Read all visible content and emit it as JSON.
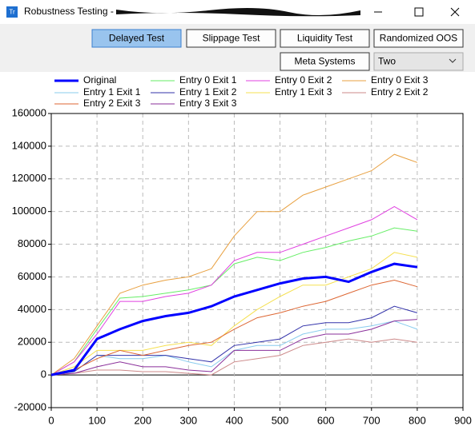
{
  "window": {
    "title": "Robustness Testing -"
  },
  "toolbar": {
    "buttons": [
      "Delayed Test",
      "Slippage Test",
      "Liquidity Test",
      "Randomized OOS",
      "Meta Systems"
    ],
    "dropdown": "Two"
  },
  "chart_data": {
    "type": "line",
    "x": [
      0,
      50,
      100,
      150,
      200,
      250,
      300,
      350,
      400,
      450,
      500,
      550,
      600,
      650,
      700,
      750,
      800
    ],
    "series": [
      {
        "name": "Original",
        "color": "#0000ff",
        "values": [
          0,
          3000,
          22000,
          28000,
          33000,
          36000,
          38000,
          42000,
          48000,
          52000,
          56000,
          59000,
          60000,
          57000,
          63000,
          68000,
          66000
        ]
      },
      {
        "name": "Entry 0 Exit 1",
        "color": "#66ee66",
        "values": [
          0,
          8000,
          28000,
          47000,
          48000,
          50000,
          52000,
          55000,
          68000,
          72000,
          70000,
          75000,
          78000,
          82000,
          85000,
          90000,
          88000
        ]
      },
      {
        "name": "Entry 0 Exit 2",
        "color": "#e040e0",
        "values": [
          0,
          8000,
          25000,
          45000,
          45000,
          48000,
          50000,
          55000,
          70000,
          75000,
          75000,
          80000,
          85000,
          90000,
          95000,
          103000,
          95000
        ]
      },
      {
        "name": "Entry 0 Exit 3",
        "color": "#e8a040",
        "values": [
          0,
          10000,
          30000,
          50000,
          55000,
          58000,
          60000,
          65000,
          85000,
          100000,
          100000,
          110000,
          115000,
          120000,
          125000,
          135000,
          130000
        ]
      },
      {
        "name": "Entry 1 Exit 1",
        "color": "#88ccee",
        "values": [
          0,
          2000,
          12000,
          10000,
          10000,
          12000,
          8000,
          5000,
          15000,
          18000,
          18000,
          25000,
          28000,
          28000,
          30000,
          33000,
          28000
        ]
      },
      {
        "name": "Entry 1 Exit 2",
        "color": "#3333aa",
        "values": [
          0,
          2000,
          12000,
          12000,
          12000,
          12000,
          10000,
          8000,
          18000,
          20000,
          22000,
          30000,
          32000,
          32000,
          35000,
          42000,
          38000
        ]
      },
      {
        "name": "Entry 1 Exit 3",
        "color": "#f5e050",
        "values": [
          0,
          5000,
          15000,
          15000,
          15000,
          18000,
          20000,
          18000,
          30000,
          40000,
          48000,
          55000,
          55000,
          60000,
          65000,
          75000,
          72000
        ]
      },
      {
        "name": "Entry 2 Exit 2",
        "color": "#cc8888",
        "values": [
          0,
          1000,
          3000,
          3000,
          2000,
          2000,
          1000,
          0,
          8000,
          10000,
          12000,
          18000,
          20000,
          22000,
          20000,
          22000,
          20000
        ]
      },
      {
        "name": "Entry 2 Exit 3",
        "color": "#dd6633",
        "values": [
          0,
          3000,
          10000,
          15000,
          12000,
          15000,
          18000,
          20000,
          28000,
          35000,
          38000,
          42000,
          45000,
          50000,
          55000,
          58000,
          54000
        ]
      },
      {
        "name": "Entry 3 Exit 3",
        "color": "#8a2f9a",
        "values": [
          0,
          1000,
          5000,
          8000,
          5000,
          5000,
          3000,
          2000,
          15000,
          15000,
          15000,
          22000,
          25000,
          25000,
          28000,
          33000,
          34000
        ]
      }
    ],
    "xlim": [
      0,
      900
    ],
    "xticks": [
      0,
      100,
      200,
      300,
      400,
      500,
      600,
      700,
      800,
      900
    ],
    "ylim": [
      -20000,
      160000
    ],
    "yticks": [
      -20000,
      0,
      20000,
      40000,
      60000,
      80000,
      100000,
      120000,
      140000,
      160000
    ],
    "grid": true
  }
}
